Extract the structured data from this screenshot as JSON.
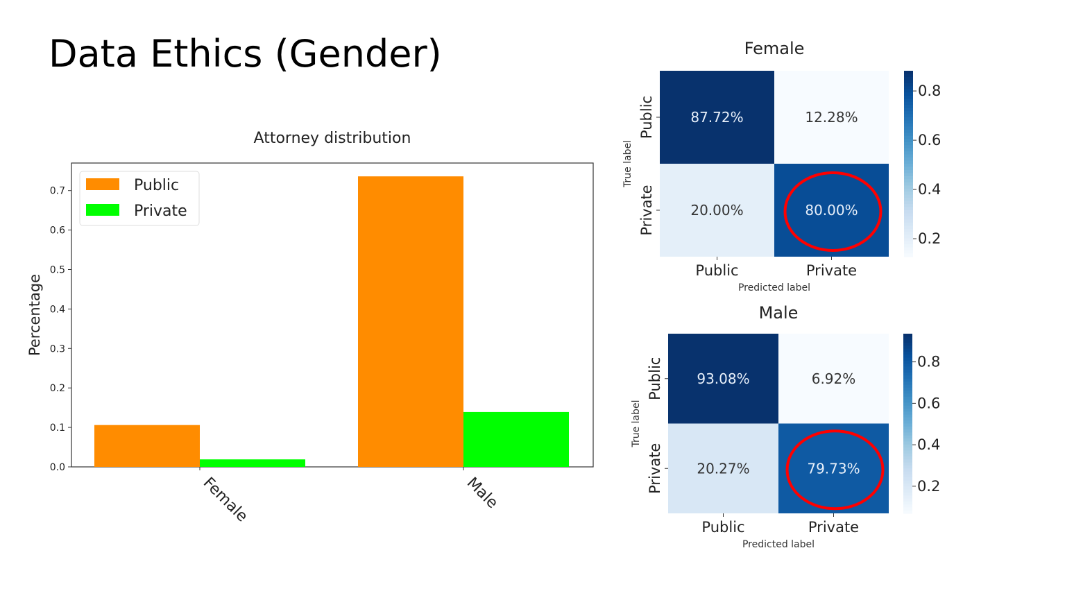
{
  "slide": {
    "title": "Data Ethics (Gender)"
  },
  "chart_data": [
    {
      "type": "bar",
      "title": "Attorney distribution",
      "xlabel": "",
      "ylabel": "Percentage",
      "categories": [
        "Female",
        "Male"
      ],
      "series": [
        {
          "name": "Public",
          "values": [
            0.106,
            0.736
          ],
          "color": "#ff8c00"
        },
        {
          "name": "Private",
          "values": [
            0.019,
            0.139
          ],
          "color": "#00ff00"
        }
      ],
      "ylim": [
        0,
        0.77
      ],
      "yticks": [
        "0.0",
        "0.1",
        "0.2",
        "0.3",
        "0.4",
        "0.5",
        "0.6",
        "0.7"
      ],
      "legend": "top-left",
      "grid": false
    },
    {
      "type": "heatmap",
      "title": "Female",
      "xlabel": "Predicted label",
      "ylabel": "True label",
      "x_categories": [
        "Public",
        "Private"
      ],
      "y_categories": [
        "Public",
        "Private"
      ],
      "values": [
        [
          0.8772,
          0.1228
        ],
        [
          0.2,
          0.8
        ]
      ],
      "labels": [
        [
          "87.72%",
          "12.28%"
        ],
        [
          "20.00%",
          "80.00%"
        ]
      ],
      "colorbar": {
        "range": [
          0.127,
          0.882
        ],
        "ticks": [
          "0.2",
          "0.4",
          "0.6",
          "0.8"
        ]
      },
      "highlighted_cell": [
        1,
        1
      ],
      "highlight_color": "#ff0000"
    },
    {
      "type": "heatmap",
      "title": "Male",
      "xlabel": "Predicted label",
      "ylabel": "True label",
      "x_categories": [
        "Public",
        "Private"
      ],
      "y_categories": [
        "Public",
        "Private"
      ],
      "values": [
        [
          0.9308,
          0.0692
        ],
        [
          0.2027,
          0.7973
        ]
      ],
      "labels": [
        [
          "93.08%",
          "6.92%"
        ],
        [
          "20.27%",
          "79.73%"
        ]
      ],
      "colorbar": {
        "range": [
          0.069,
          0.936
        ],
        "ticks": [
          "0.2",
          "0.4",
          "0.6",
          "0.8"
        ]
      },
      "highlighted_cell": [
        1,
        1
      ],
      "highlight_color": "#ff0000"
    }
  ]
}
